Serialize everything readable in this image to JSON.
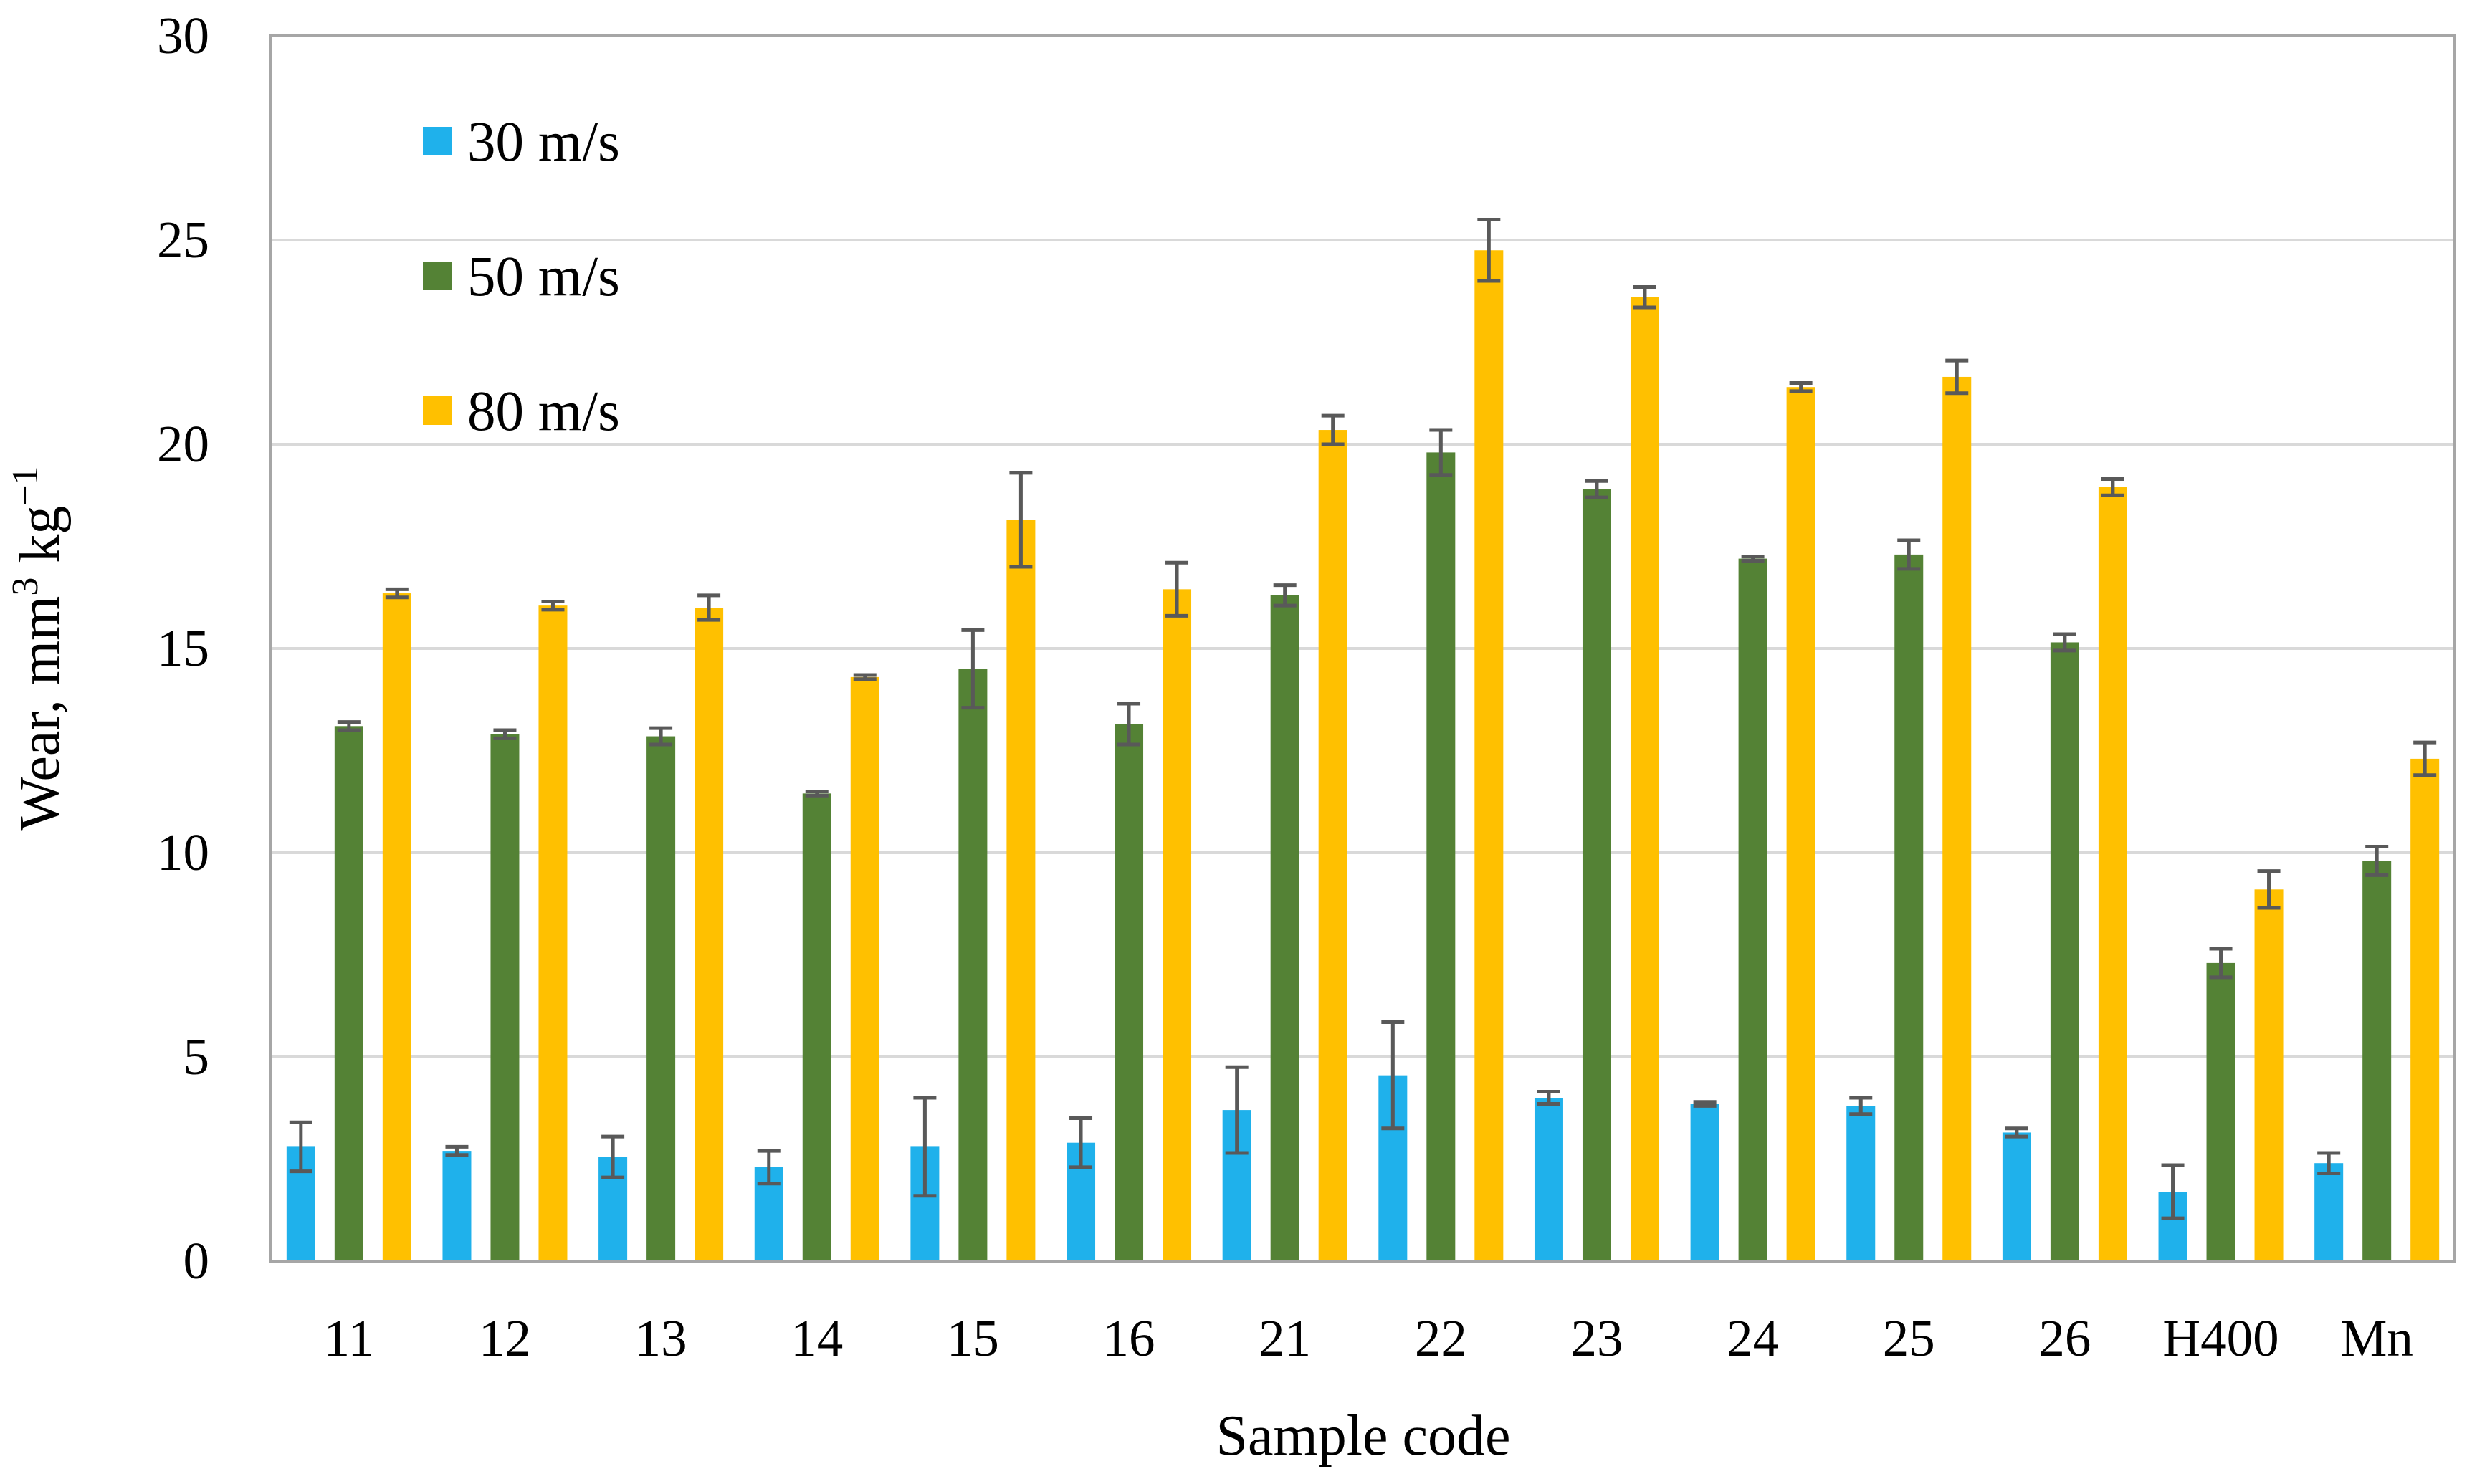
{
  "chart_data": {
    "type": "bar",
    "title": "",
    "xlabel": "Sample code",
    "ylabel": "Wear, mm³ kg⁻¹",
    "ylabel_parts": {
      "base": "Wear, mm",
      "sup1": "3",
      "mid": " kg",
      "sup2": "−1"
    },
    "ylim": [
      0,
      30
    ],
    "yticks": [
      0,
      5,
      10,
      15,
      20,
      25,
      30
    ],
    "grid": true,
    "legend_position": "top-left",
    "categories": [
      "11",
      "12",
      "13",
      "14",
      "15",
      "16",
      "21",
      "22",
      "23",
      "24",
      "25",
      "26",
      "H400",
      "Mn"
    ],
    "series": [
      {
        "name": "30 m/s",
        "color": "#1fb1eb",
        "values": [
          2.8,
          2.7,
          2.55,
          2.3,
          2.8,
          2.9,
          3.7,
          4.55,
          4.0,
          3.85,
          3.8,
          3.15,
          1.7,
          2.4
        ],
        "errors": [
          0.6,
          0.1,
          0.5,
          0.4,
          1.2,
          0.6,
          1.05,
          1.3,
          0.15,
          0.05,
          0.2,
          0.1,
          0.65,
          0.25
        ]
      },
      {
        "name": "50 m/s",
        "color": "#548235",
        "values": [
          13.1,
          12.9,
          12.85,
          11.45,
          14.5,
          13.15,
          16.3,
          19.8,
          18.9,
          17.2,
          17.3,
          15.15,
          7.3,
          9.8
        ],
        "errors": [
          0.1,
          0.1,
          0.2,
          0.05,
          0.95,
          0.5,
          0.25,
          0.55,
          0.2,
          0.05,
          0.35,
          0.2,
          0.35,
          0.35
        ]
      },
      {
        "name": "80 m/s",
        "color": "#ffc000",
        "values": [
          16.35,
          16.05,
          16.0,
          14.3,
          18.15,
          16.45,
          20.35,
          24.75,
          23.6,
          21.4,
          21.65,
          18.95,
          9.1,
          12.3
        ],
        "errors": [
          0.1,
          0.1,
          0.3,
          0.05,
          1.15,
          0.65,
          0.35,
          0.75,
          0.25,
          0.1,
          0.4,
          0.2,
          0.45,
          0.4
        ]
      }
    ]
  }
}
